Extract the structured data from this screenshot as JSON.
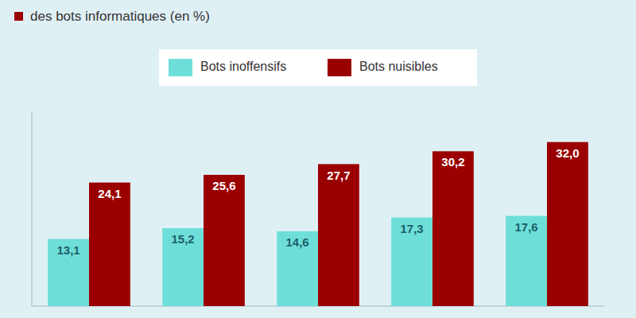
{
  "chart_data": {
    "type": "bar",
    "title": "des bots informatiques (en %)",
    "categories": [
      null,
      null,
      null,
      null,
      null
    ],
    "series": [
      {
        "name": "Bots inoffensifs",
        "color": "#6EDFD8",
        "values": [
          13.1,
          15.2,
          14.6,
          17.3,
          17.6
        ],
        "value_labels": [
          "13,1",
          "15,2",
          "14,6",
          "17,3",
          "17,6"
        ]
      },
      {
        "name": "Bots nuisibles",
        "color": "#9B0000",
        "values": [
          24.1,
          25.6,
          27.7,
          30.2,
          32.0
        ],
        "value_labels": [
          "24,1",
          "25,6",
          "27,7",
          "30,2",
          "32,0"
        ]
      }
    ],
    "ylim": [
      0,
      38
    ],
    "grid": false,
    "legend": "top",
    "data_labels": true,
    "tick_labels": false
  }
}
